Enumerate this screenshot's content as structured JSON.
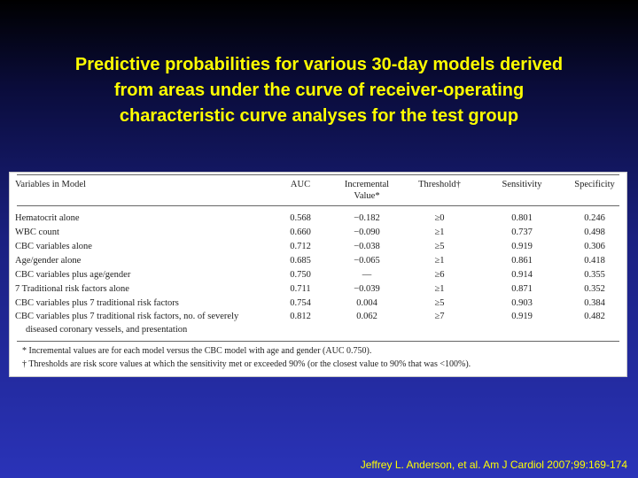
{
  "title": {
    "lines": [
      "Predictive probabilities for various 30-day models derived",
      "from areas under the curve of receiver-operating",
      "characteristic curve analyses for the test group"
    ]
  },
  "table": {
    "headers": {
      "variables": "Variables in Model",
      "auc": "AUC",
      "incremental_1": "Incremental",
      "incremental_2": "Value*",
      "threshold": "Threshold†",
      "sensitivity": "Sensitivity",
      "specificity": "Specificity"
    },
    "rows": [
      {
        "name": "Hematocrit alone",
        "auc": "0.568",
        "inc": "−0.182",
        "thr": "≥0",
        "sens": "0.801",
        "spec": "0.246"
      },
      {
        "name": "WBC count",
        "auc": "0.660",
        "inc": "−0.090",
        "thr": "≥1",
        "sens": "0.737",
        "spec": "0.498"
      },
      {
        "name": "CBC variables alone",
        "auc": "0.712",
        "inc": "−0.038",
        "thr": "≥5",
        "sens": "0.919",
        "spec": "0.306"
      },
      {
        "name": "Age/gender alone",
        "auc": "0.685",
        "inc": "−0.065",
        "thr": "≥1",
        "sens": "0.861",
        "spec": "0.418"
      },
      {
        "name": "CBC variables plus age/gender",
        "auc": "0.750",
        "inc": "—",
        "thr": "≥6",
        "sens": "0.914",
        "spec": "0.355"
      },
      {
        "name": "7 Traditional risk factors alone",
        "auc": "0.711",
        "inc": "−0.039",
        "thr": "≥1",
        "sens": "0.871",
        "spec": "0.352"
      },
      {
        "name": "CBC variables plus 7 traditional risk factors",
        "auc": "0.754",
        "inc": "0.004",
        "thr": "≥5",
        "sens": "0.903",
        "spec": "0.384"
      },
      {
        "name": "CBC variables plus 7 traditional risk factors, no. of severely",
        "name2": "diseased coronary vessels, and presentation",
        "auc": "0.812",
        "inc": "0.062",
        "thr": "≥7",
        "sens": "0.919",
        "spec": "0.482"
      }
    ],
    "footnotes": [
      "* Incremental values are for each model versus the CBC model with age and gender (AUC 0.750).",
      "† Thresholds are risk score values at which the sensitivity met or exceeded 90% (or the closest value to 90% that was <100%)."
    ]
  },
  "citation": "Jeffrey L. Anderson, et al. Am J Cardiol 2007;99:169-174",
  "colors": {
    "title": "#ffff00",
    "citation": "#ffff00",
    "table_bg": "#ffffff"
  }
}
